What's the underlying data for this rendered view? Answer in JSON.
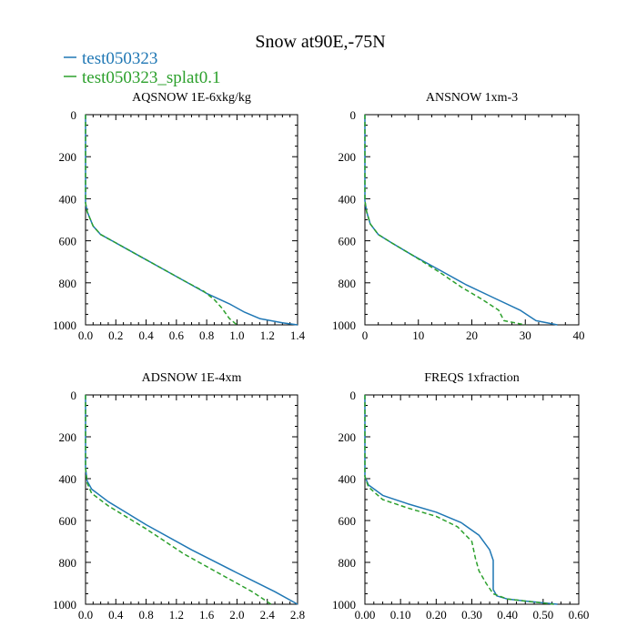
{
  "title": "Snow at90E,-75N",
  "legend": [
    {
      "label": "test050323",
      "color": "#1f77b4",
      "dash": "solid"
    },
    {
      "label": "test050323_splat0.1",
      "color": "#2ca02c",
      "dash": "dashed"
    }
  ],
  "chart_data": [
    {
      "type": "line",
      "title": "AQSNOW  1E-6xkg/kg",
      "xlim": [
        0,
        1.4
      ],
      "ylim": [
        0,
        1000
      ],
      "y_inverted": true,
      "xticks": [
        0,
        0.2,
        0.4,
        0.6,
        0.8,
        1.0,
        1.2,
        1.4
      ],
      "xtick_labels": [
        "0.0",
        "0.2",
        "0.4",
        "0.6",
        "0.8",
        "1.0",
        "1.2",
        "1.4"
      ],
      "yticks": [
        0,
        200,
        400,
        600,
        800,
        1000
      ],
      "ytick_labels": [
        "0",
        "200",
        "400",
        "600",
        "800",
        "1000"
      ],
      "series": [
        {
          "name": "test050323",
          "x": [
            0,
            0,
            0.01,
            0.05,
            0.1,
            0.2,
            0.35,
            0.5,
            0.65,
            0.8,
            0.95,
            1.05,
            1.15,
            1.3,
            1.4
          ],
          "y": [
            0,
            420,
            460,
            530,
            570,
            610,
            670,
            730,
            790,
            850,
            900,
            940,
            970,
            990,
            1000
          ]
        },
        {
          "name": "test050323_splat0.1",
          "x": [
            0,
            0,
            0.01,
            0.05,
            0.1,
            0.2,
            0.35,
            0.5,
            0.65,
            0.78,
            0.85,
            0.9,
            0.95,
            1.0
          ],
          "y": [
            0,
            420,
            460,
            530,
            570,
            610,
            670,
            730,
            790,
            840,
            880,
            920,
            970,
            1000
          ]
        }
      ]
    },
    {
      "type": "line",
      "title": "ANSNOW  1xm-3",
      "xlim": [
        0,
        40
      ],
      "ylim": [
        0,
        1000
      ],
      "y_inverted": true,
      "xticks": [
        0,
        10,
        20,
        30,
        40
      ],
      "xtick_labels": [
        "0",
        "10",
        "20",
        "30",
        "40"
      ],
      "yticks": [
        0,
        200,
        400,
        600,
        800,
        1000
      ],
      "ytick_labels": [
        "0",
        "200",
        "400",
        "600",
        "800",
        "1000"
      ],
      "series": [
        {
          "name": "test050323",
          "x": [
            0,
            0,
            0.3,
            1,
            2.5,
            5,
            9,
            14,
            19,
            24,
            29,
            32,
            36
          ],
          "y": [
            0,
            410,
            460,
            520,
            570,
            610,
            670,
            740,
            810,
            870,
            930,
            980,
            1000
          ]
        },
        {
          "name": "test050323_splat0.1",
          "x": [
            0,
            0,
            0.3,
            1,
            2.5,
            5,
            9,
            14,
            18,
            22,
            25,
            26,
            30
          ],
          "y": [
            0,
            410,
            460,
            520,
            570,
            610,
            670,
            750,
            820,
            880,
            930,
            980,
            1000
          ]
        }
      ]
    },
    {
      "type": "line",
      "title": "ADSNOW  1E-4xm",
      "xlim": [
        0,
        2.8
      ],
      "ylim": [
        0,
        1000
      ],
      "y_inverted": true,
      "xticks": [
        0,
        0.4,
        0.8,
        1.2,
        1.6,
        2.0,
        2.4,
        2.8
      ],
      "xtick_labels": [
        "0.0",
        "0.4",
        "0.8",
        "1.2",
        "1.6",
        "2.0",
        "2.4",
        "2.8"
      ],
      "yticks": [
        0,
        200,
        400,
        600,
        800,
        1000
      ],
      "ytick_labels": [
        "0",
        "200",
        "400",
        "600",
        "800",
        "1000"
      ],
      "series": [
        {
          "name": "test050323",
          "x": [
            0,
            0,
            0.02,
            0.08,
            0.3,
            0.8,
            1.4,
            2.0,
            2.5,
            2.8
          ],
          "y": [
            0,
            350,
            410,
            450,
            510,
            620,
            740,
            850,
            940,
            1000
          ]
        },
        {
          "name": "test050323_splat0.1",
          "x": [
            0,
            0,
            0.02,
            0.08,
            0.3,
            0.8,
            1.3,
            1.8,
            2.2,
            2.45
          ],
          "y": [
            0,
            350,
            420,
            470,
            530,
            640,
            760,
            860,
            940,
            1000
          ]
        }
      ]
    },
    {
      "type": "line",
      "title": "FREQS  1xfraction",
      "xlim": [
        0,
        0.6
      ],
      "ylim": [
        0,
        1000
      ],
      "y_inverted": true,
      "xticks": [
        0,
        0.1,
        0.2,
        0.3,
        0.4,
        0.5,
        0.6
      ],
      "xtick_labels": [
        "0.00",
        "0.10",
        "0.20",
        "0.30",
        "0.40",
        "0.50",
        "0.60"
      ],
      "yticks": [
        0,
        200,
        400,
        600,
        800,
        1000
      ],
      "ytick_labels": [
        "0",
        "200",
        "400",
        "600",
        "800",
        "1000"
      ],
      "series": [
        {
          "name": "test050323",
          "x": [
            0,
            0,
            0.01,
            0.05,
            0.12,
            0.2,
            0.27,
            0.32,
            0.35,
            0.36,
            0.36,
            0.37,
            0.4,
            0.45,
            0.54
          ],
          "y": [
            0,
            390,
            430,
            480,
            520,
            560,
            610,
            670,
            740,
            790,
            930,
            960,
            975,
            985,
            1000
          ]
        },
        {
          "name": "test050323_splat0.1",
          "x": [
            0,
            0,
            0.01,
            0.05,
            0.12,
            0.2,
            0.26,
            0.3,
            0.31,
            0.32,
            0.34,
            0.36,
            0.4,
            0.45,
            0.53
          ],
          "y": [
            0,
            390,
            440,
            500,
            540,
            580,
            630,
            700,
            780,
            840,
            900,
            950,
            975,
            985,
            1000
          ]
        }
      ]
    }
  ]
}
